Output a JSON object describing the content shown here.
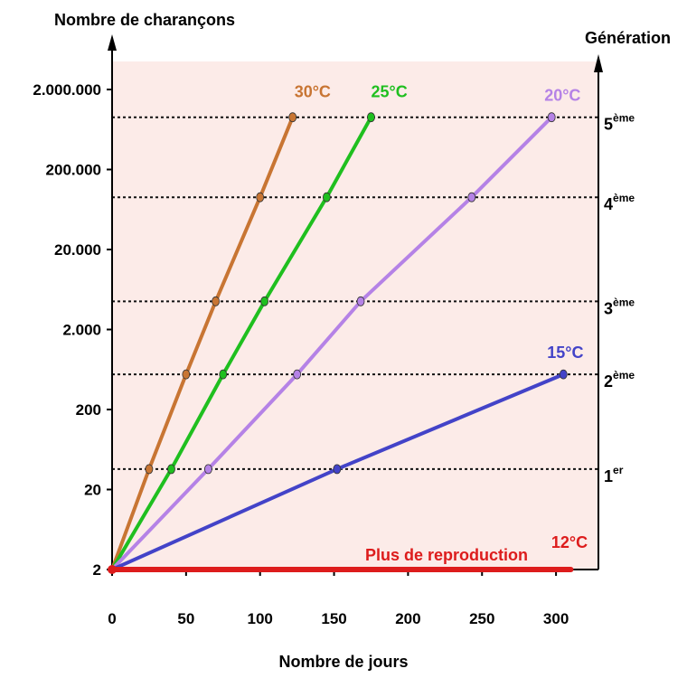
{
  "chart_data": {
    "type": "line",
    "title": "",
    "ylabel": "Nombre de charançons",
    "xlabel": "Nombre de jours",
    "y2label": "Génération",
    "y_scale": "log10",
    "xlim": [
      0,
      320
    ],
    "ylim": [
      2,
      5000000
    ],
    "x_ticks": [
      0,
      50,
      100,
      150,
      200,
      250,
      300
    ],
    "y_ticks": [
      {
        "value": 2,
        "label": "2"
      },
      {
        "value": 20,
        "label": "20"
      },
      {
        "value": 200,
        "label": "200"
      },
      {
        "value": 2000,
        "label": "2.000"
      },
      {
        "value": 20000,
        "label": "20.000"
      },
      {
        "value": 200000,
        "label": "200.000"
      },
      {
        "value": 2000000,
        "label": "2.000.000"
      }
    ],
    "generations": [
      {
        "value": 36,
        "label": "1",
        "suffix": "er"
      },
      {
        "value": 550,
        "label": "2",
        "suffix": "ème"
      },
      {
        "value": 4500,
        "label": "3",
        "suffix": "ème"
      },
      {
        "value": 90000,
        "label": "4",
        "suffix": "ème"
      },
      {
        "value": 900000,
        "label": "5",
        "suffix": "ème"
      }
    ],
    "series": [
      {
        "name": "30°C",
        "color": "#c87533",
        "points": [
          [
            0,
            2
          ],
          [
            25,
            36
          ],
          [
            50,
            550
          ],
          [
            70,
            4500
          ],
          [
            100,
            90000
          ],
          [
            122,
            900000
          ]
        ]
      },
      {
        "name": "25°C",
        "color": "#1fbf1f",
        "points": [
          [
            0,
            2
          ],
          [
            40,
            36
          ],
          [
            75,
            550
          ],
          [
            103,
            4500
          ],
          [
            145,
            90000
          ],
          [
            175,
            900000
          ]
        ]
      },
      {
        "name": "20°C",
        "color": "#b582e6",
        "points": [
          [
            0,
            2
          ],
          [
            65,
            36
          ],
          [
            125,
            550
          ],
          [
            168,
            4500
          ],
          [
            243,
            90000
          ],
          [
            297,
            900000
          ]
        ]
      },
      {
        "name": "15°C",
        "color": "#4343c8",
        "points": [
          [
            0,
            2
          ],
          [
            152,
            36
          ],
          [
            305,
            550
          ]
        ]
      },
      {
        "name": "12°C",
        "color": "#dd1c1c",
        "points": [
          [
            0,
            2
          ],
          [
            310,
            2
          ]
        ]
      }
    ],
    "annotations": [
      {
        "text": "Plus de reproduction",
        "color": "#dd1c1c"
      }
    ],
    "grid": false,
    "legend": "none",
    "background_band_color": "#fcebe8"
  }
}
